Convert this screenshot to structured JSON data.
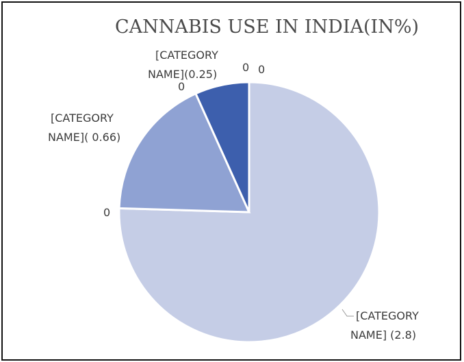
{
  "chart_data": {
    "type": "pie",
    "title": "CANNABIS USE IN INDIA(IN%)",
    "slices": [
      {
        "label_line1": "[CATEGORY",
        "label_line2": "NAME] (2.8)",
        "value": 2.8,
        "color": "#c5cde6"
      },
      {
        "label_line1": "[CATEGORY",
        "label_line2": "NAME]( 0.66)",
        "value": 0.66,
        "color": "#8fa2d3"
      },
      {
        "label_line1": "[CATEGORY",
        "label_line2": "NAME](0.25)",
        "value": 0.25,
        "color": "#3d5fad"
      }
    ],
    "zero_labels": [
      "0",
      "0",
      "0",
      "0"
    ]
  }
}
